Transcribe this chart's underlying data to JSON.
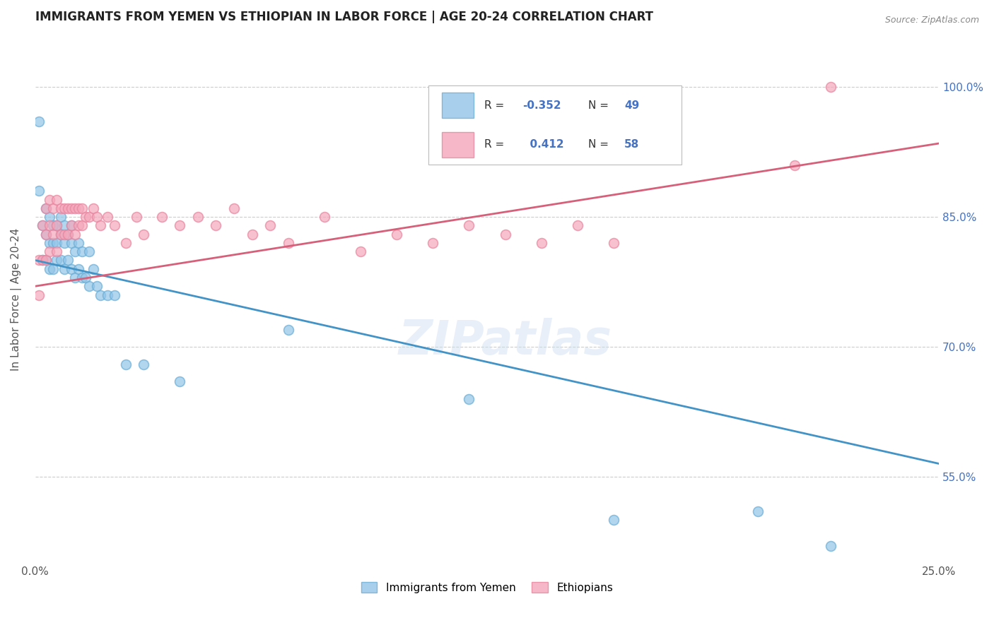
{
  "title": "IMMIGRANTS FROM YEMEN VS ETHIOPIAN IN LABOR FORCE | AGE 20-24 CORRELATION CHART",
  "source": "Source: ZipAtlas.com",
  "ylabel": "In Labor Force | Age 20-24",
  "xlim": [
    0.0,
    0.25
  ],
  "ylim": [
    0.45,
    1.06
  ],
  "R_yemen": -0.352,
  "N_yemen": 49,
  "R_ethiopian": 0.412,
  "N_ethiopian": 58,
  "blue_color": "#92c5e8",
  "pink_color": "#f4a7bb",
  "blue_edge_color": "#6aadd5",
  "pink_edge_color": "#e8849e",
  "blue_line_color": "#4393c7",
  "pink_line_color": "#d6607a",
  "watermark": "ZIPatlas",
  "yemen_x": [
    0.001,
    0.001,
    0.002,
    0.002,
    0.003,
    0.003,
    0.003,
    0.004,
    0.004,
    0.004,
    0.005,
    0.005,
    0.005,
    0.006,
    0.006,
    0.006,
    0.007,
    0.007,
    0.007,
    0.008,
    0.008,
    0.008,
    0.009,
    0.009,
    0.01,
    0.01,
    0.01,
    0.011,
    0.011,
    0.012,
    0.012,
    0.013,
    0.013,
    0.014,
    0.015,
    0.015,
    0.016,
    0.017,
    0.018,
    0.02,
    0.022,
    0.025,
    0.03,
    0.04,
    0.07,
    0.12,
    0.16,
    0.2,
    0.22
  ],
  "yemen_y": [
    0.96,
    0.88,
    0.84,
    0.8,
    0.86,
    0.83,
    0.8,
    0.85,
    0.82,
    0.79,
    0.84,
    0.82,
    0.79,
    0.84,
    0.82,
    0.8,
    0.85,
    0.83,
    0.8,
    0.84,
    0.82,
    0.79,
    0.83,
    0.8,
    0.84,
    0.82,
    0.79,
    0.81,
    0.78,
    0.82,
    0.79,
    0.81,
    0.78,
    0.78,
    0.81,
    0.77,
    0.79,
    0.77,
    0.76,
    0.76,
    0.76,
    0.68,
    0.68,
    0.66,
    0.72,
    0.64,
    0.5,
    0.51,
    0.47
  ],
  "ethiopian_x": [
    0.001,
    0.001,
    0.002,
    0.002,
    0.003,
    0.003,
    0.003,
    0.004,
    0.004,
    0.004,
    0.005,
    0.005,
    0.006,
    0.006,
    0.006,
    0.007,
    0.007,
    0.008,
    0.008,
    0.009,
    0.009,
    0.01,
    0.01,
    0.011,
    0.011,
    0.012,
    0.012,
    0.013,
    0.013,
    0.014,
    0.015,
    0.016,
    0.017,
    0.018,
    0.02,
    0.022,
    0.025,
    0.028,
    0.03,
    0.035,
    0.04,
    0.045,
    0.05,
    0.055,
    0.06,
    0.065,
    0.07,
    0.08,
    0.09,
    0.1,
    0.11,
    0.12,
    0.13,
    0.14,
    0.15,
    0.16,
    0.21,
    0.22
  ],
  "ethiopian_y": [
    0.8,
    0.76,
    0.84,
    0.8,
    0.86,
    0.83,
    0.8,
    0.87,
    0.84,
    0.81,
    0.86,
    0.83,
    0.87,
    0.84,
    0.81,
    0.86,
    0.83,
    0.86,
    0.83,
    0.86,
    0.83,
    0.86,
    0.84,
    0.86,
    0.83,
    0.86,
    0.84,
    0.86,
    0.84,
    0.85,
    0.85,
    0.86,
    0.85,
    0.84,
    0.85,
    0.84,
    0.82,
    0.85,
    0.83,
    0.85,
    0.84,
    0.85,
    0.84,
    0.86,
    0.83,
    0.84,
    0.82,
    0.85,
    0.81,
    0.83,
    0.82,
    0.84,
    0.83,
    0.82,
    0.84,
    0.82,
    0.91,
    1.0
  ],
  "yemen_line_x": [
    0.0,
    0.25
  ],
  "yemen_line_y": [
    0.8,
    0.565
  ],
  "ethiopian_line_x": [
    0.0,
    0.25
  ],
  "ethiopian_line_y": [
    0.77,
    0.935
  ]
}
